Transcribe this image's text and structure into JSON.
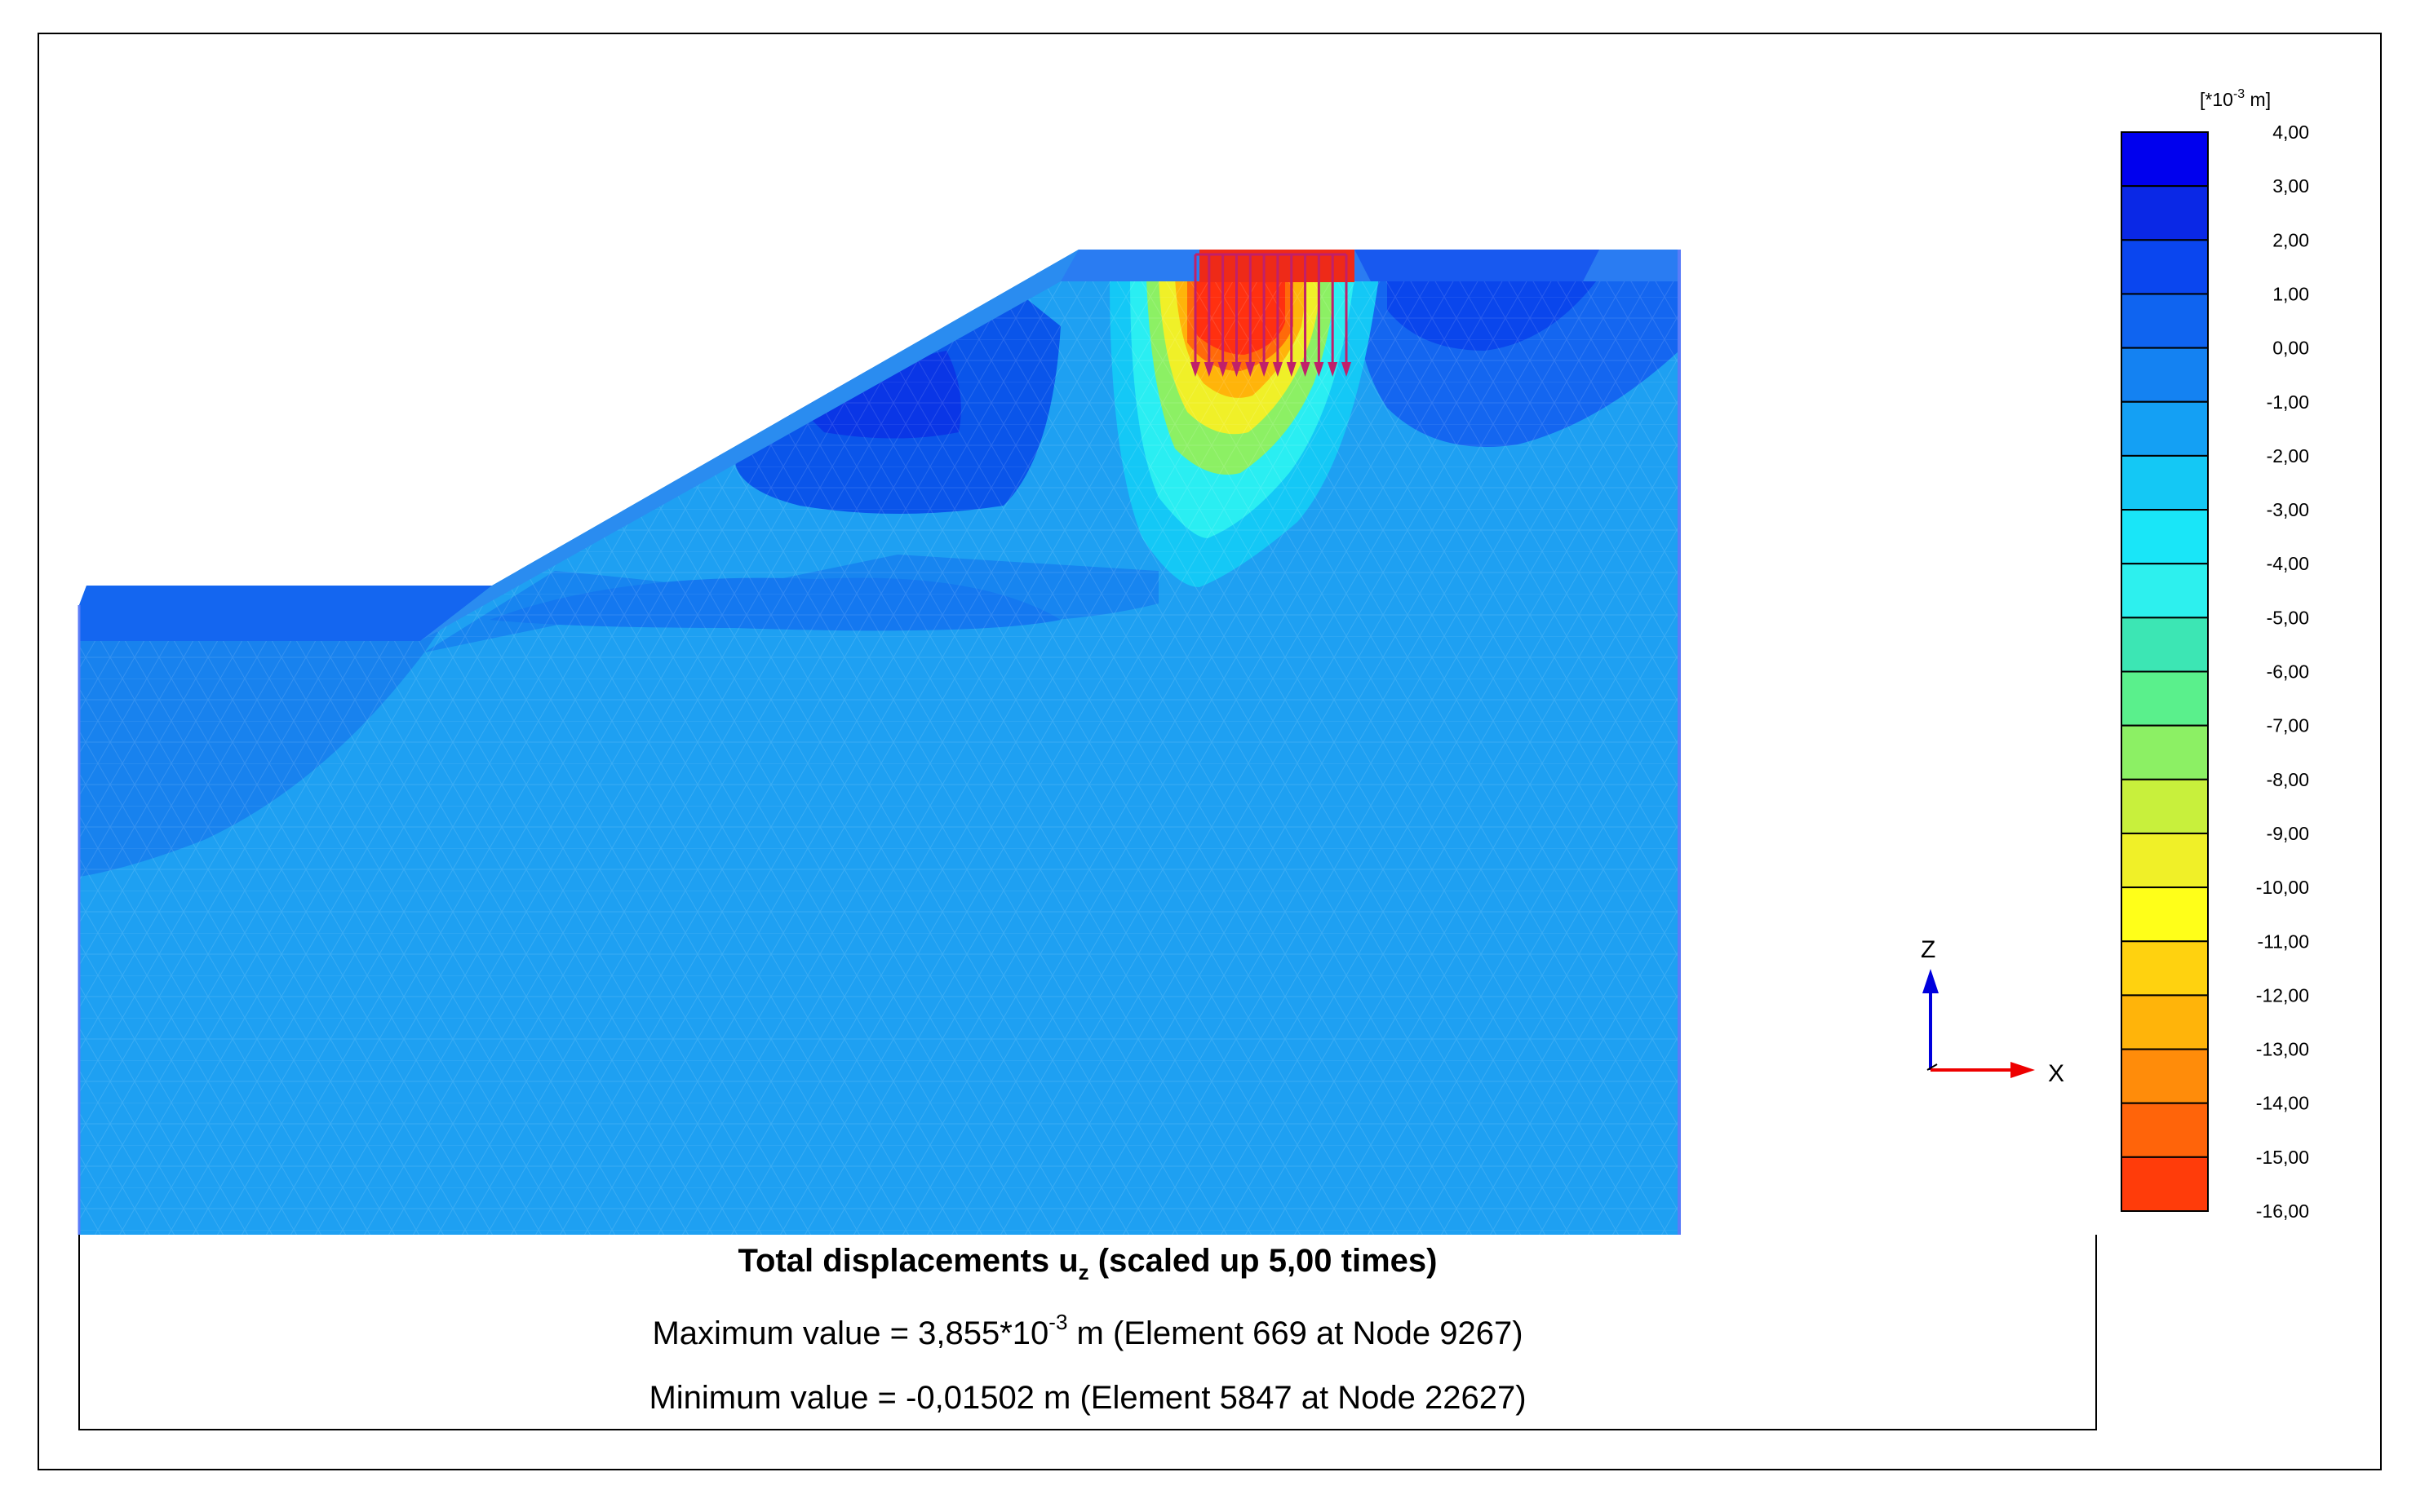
{
  "legend": {
    "unit_prefix": "[*10",
    "unit_exp": "-3",
    "unit_suffix": " m]",
    "ticks": [
      "4,00",
      "3,00",
      "2,00",
      "1,00",
      "0,00",
      "-1,00",
      "-2,00",
      "-3,00",
      "-4,00",
      "-5,00",
      "-6,00",
      "-7,00",
      "-8,00",
      "-9,00",
      "-10,00",
      "-11,00",
      "-12,00",
      "-13,00",
      "-14,00",
      "-15,00",
      "-16,00"
    ],
    "band_colors": [
      "#0000ee",
      "#0a28e6",
      "#0a46ef",
      "#0f64f0",
      "#1482f2",
      "#14a0f4",
      "#14c8f5",
      "#19e6f8",
      "#2df0ee",
      "#3ce6b4",
      "#5af08c",
      "#8cf064",
      "#c8f03c",
      "#f0f028",
      "#ffff19",
      "#ffd20f",
      "#ffb40a",
      "#ff8c0a",
      "#ff640a",
      "#ff3c0a"
    ]
  },
  "axes": {
    "z_label": "Z",
    "x_label": "X",
    "z_color": "#0000dd",
    "x_color": "#ee0000"
  },
  "caption": {
    "title_prefix": "Total displacements u",
    "title_sub": "z",
    "title_suffix": " (scaled up 5,00 times)",
    "max_prefix": "Maximum value = 3,855*10",
    "max_exp": "-3",
    "max_suffix": " m (Element 669 at Node 9267)",
    "min_text": "Minimum value = -0,01502 m (Element 5847 at Node 22627)"
  },
  "colors": {
    "soil_background": "#1e96ee",
    "load_arrow": "#c0206a",
    "load_zone": "#ee2010"
  }
}
